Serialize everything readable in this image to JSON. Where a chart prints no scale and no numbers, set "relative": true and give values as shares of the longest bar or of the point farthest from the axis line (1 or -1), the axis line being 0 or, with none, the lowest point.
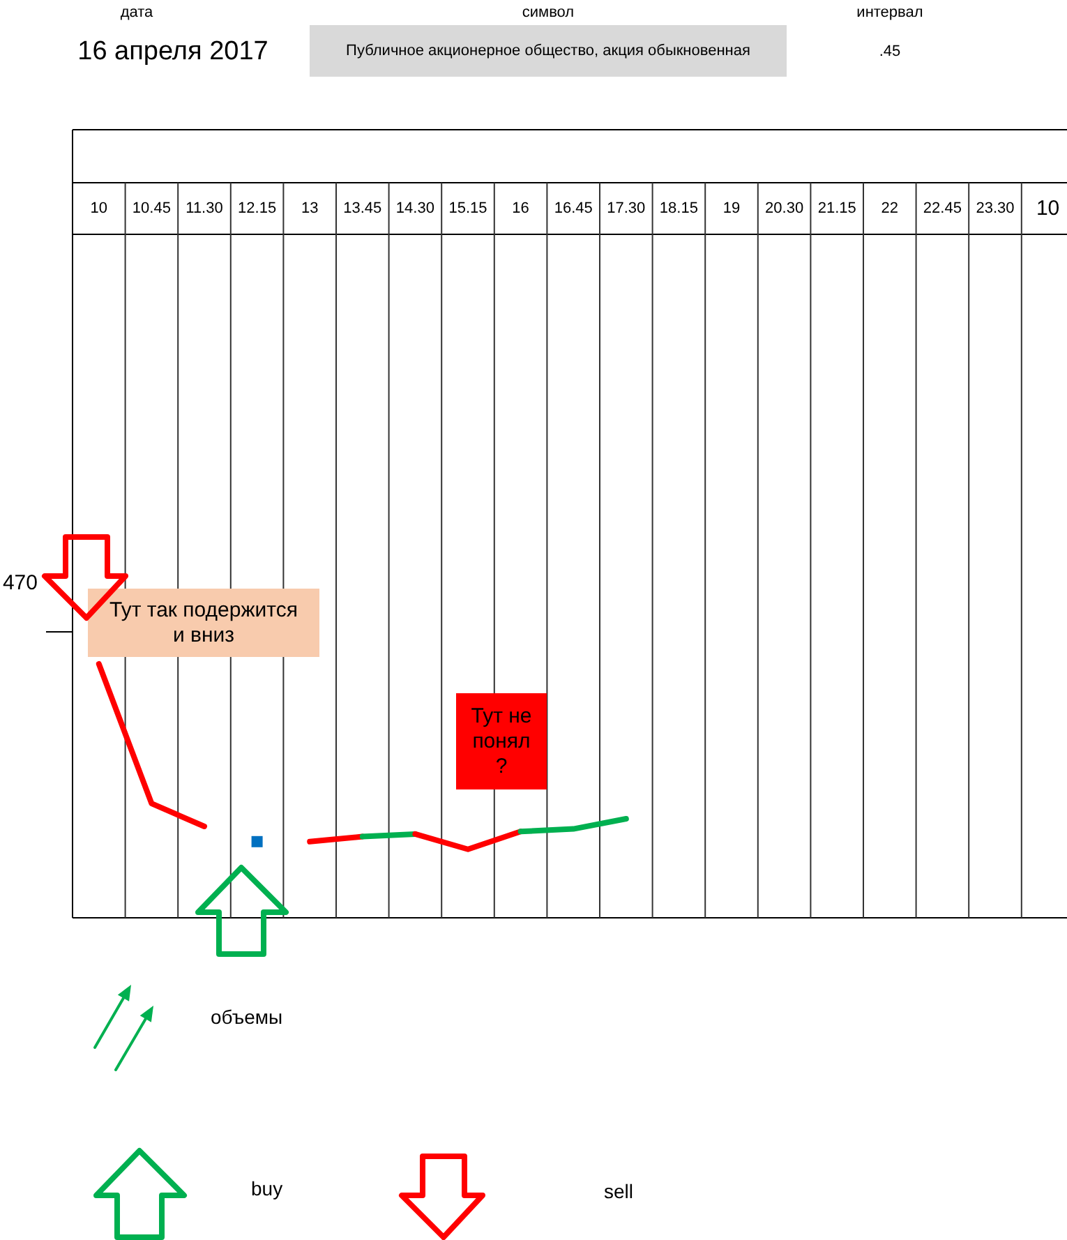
{
  "chart_data": {
    "type": "line",
    "relative": true,
    "grid": "x",
    "categories": [
      "10",
      "10.45",
      "11.30",
      "12.15",
      "13",
      "13.45",
      "14.30",
      "15.15",
      "16",
      "16.45",
      "17.30",
      "18.15",
      "19",
      "20.30",
      "21.15",
      "22",
      "22.45",
      "23.30",
      "10"
    ],
    "series": [
      {
        "color": "#ff0000",
        "values": [
          1.0,
          0.45,
          0.36,
          null,
          null,
          null,
          null,
          null,
          null,
          null,
          null,
          null,
          null,
          null,
          null,
          null,
          null,
          null,
          null
        ]
      },
      {
        "type": "scatter",
        "marker": "square",
        "color": "#0070c0",
        "values": [
          null,
          null,
          null,
          0.3,
          null,
          null,
          null,
          null,
          null,
          null,
          null,
          null,
          null,
          null,
          null,
          null,
          null,
          null,
          null
        ]
      },
      {
        "color": "#ff0000",
        "values": [
          null,
          null,
          null,
          null,
          0.3,
          0.32,
          null,
          null,
          null,
          null,
          null,
          null,
          null,
          null,
          null,
          null,
          null,
          null,
          null
        ]
      },
      {
        "color": "#00b050",
        "values": [
          null,
          null,
          null,
          null,
          null,
          0.32,
          0.33,
          null,
          null,
          null,
          null,
          null,
          null,
          null,
          null,
          null,
          null,
          null,
          null
        ]
      },
      {
        "color": "#ff0000",
        "values": [
          null,
          null,
          null,
          null,
          null,
          null,
          0.33,
          0.27,
          0.34,
          null,
          null,
          null,
          null,
          null,
          null,
          null,
          null,
          null,
          null
        ]
      },
      {
        "color": "#00b050",
        "values": [
          null,
          null,
          null,
          null,
          null,
          null,
          null,
          null,
          0.34,
          0.35,
          0.39,
          null,
          null,
          null,
          null,
          null,
          null,
          null,
          null
        ]
      }
    ],
    "annotations": [
      "дата",
      "16 апреля 2017",
      "символ",
      "Публичное акционерное общество, акция обыкновенная",
      "интервал",
      ".45",
      "470",
      "Тут так подержится и вниз",
      "Тут не понял ?",
      "объемы",
      "buy",
      "sell"
    ]
  }
}
